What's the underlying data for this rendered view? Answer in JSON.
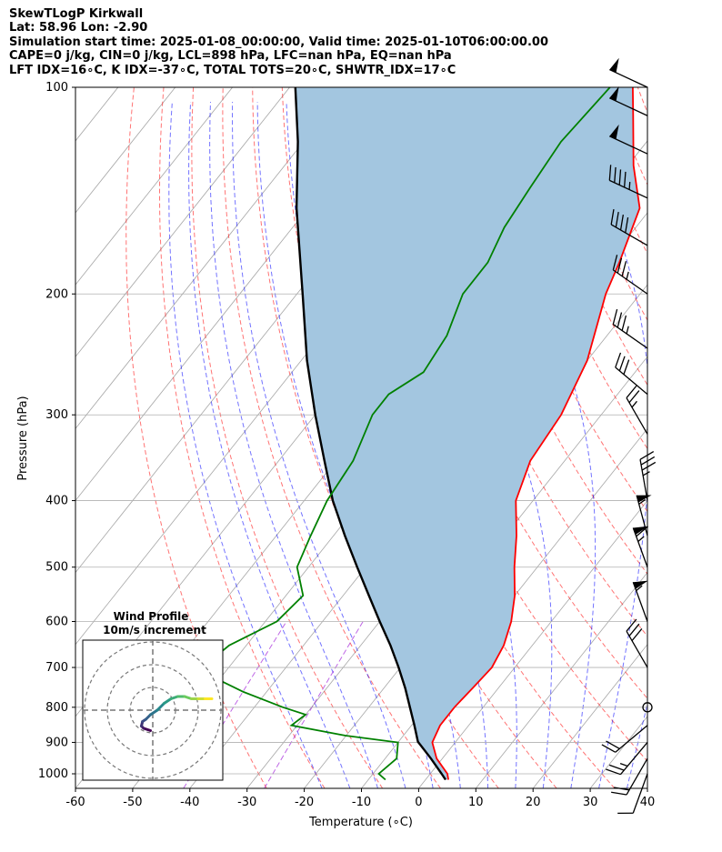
{
  "header": {
    "lines": [
      "SkewTLogP Kirkwall",
      "Lat: 58.96   Lon: -2.90",
      "Simulation start time: 2025-01-08_00:00:00, Valid time: 2025-01-10T06:00:00.00",
      "CAPE=0 j/kg, CIN=0 j/kg, LCL=898 hPa, LFC=nan hPa, EQ=nan hPa",
      "LFT IDX=16∘C, K IDX=-37∘C, TOTAL TOTS=20∘C, SHWTR_IDX=17∘C"
    ]
  },
  "colors": {
    "temperature": "#ff0000",
    "dewpoint": "#008000",
    "parcel": "#000000",
    "cape_fill": "#a3c6e0",
    "dry_adiabat": "#ff0000",
    "moist_adiabat": "#0000ff",
    "isotherm": "#808080",
    "mixing_ratio": "#9400d3"
  },
  "chart_data": {
    "type": "skewt-logp",
    "xlabel": "Temperature (∘C)",
    "ylabel": "Pressure (hPa)",
    "xlim": [
      -60,
      40
    ],
    "ylim_hpa": [
      1050,
      100
    ],
    "log_y": true,
    "grid": true,
    "x_ticks": [
      -60,
      -50,
      -40,
      -30,
      -20,
      -10,
      0,
      10,
      20,
      30,
      40
    ],
    "y_ticks": [
      100,
      200,
      300,
      400,
      500,
      600,
      700,
      800,
      900,
      1000
    ],
    "temperature": {
      "p": [
        1020,
        1000,
        950,
        900,
        850,
        800,
        750,
        700,
        650,
        600,
        550,
        500,
        450,
        400,
        350,
        300,
        250,
        200,
        180,
        150,
        130,
        110,
        100
      ],
      "t": [
        4,
        3,
        -1,
        -4,
        -5,
        -5,
        -4.5,
        -4,
        -5,
        -7,
        -10,
        -14,
        -18,
        -23,
        -26,
        -27,
        -30,
        -36,
        -38,
        -42,
        -49,
        -56,
        -60
      ]
    },
    "dewpoint": {
      "p": [
        1020,
        1000,
        950,
        900,
        880,
        850,
        820,
        800,
        760,
        720,
        680,
        650,
        600,
        550,
        500,
        450,
        400,
        350,
        300,
        280,
        260,
        230,
        200,
        180,
        160,
        140,
        120,
        100
      ],
      "td": [
        -7,
        -9,
        -8,
        -10,
        -20,
        -31,
        -30,
        -35,
        -44,
        -52,
        -54,
        -53,
        -48,
        -47,
        -52,
        -54,
        -56,
        -57,
        -60,
        -60,
        -57,
        -58,
        -61,
        -61,
        -63,
        -64,
        -65,
        -64
      ]
    },
    "parcel": {
      "p": [
        1020,
        1000,
        950,
        898,
        850,
        800,
        750,
        700,
        650,
        600,
        550,
        500,
        450,
        400,
        350,
        300,
        250,
        200,
        150,
        120,
        100
      ],
      "t": [
        3.5,
        2,
        -2,
        -6.6,
        -9.5,
        -12.8,
        -16.3,
        -20.3,
        -24.8,
        -30,
        -35.5,
        -41.5,
        -48,
        -55,
        -62,
        -70,
        -79,
        -89,
        -102,
        -111,
        -119
      ]
    },
    "wind_barbs": [
      {
        "p": 1000,
        "speed_kt": 10,
        "dir_deg": 200
      },
      {
        "p": 950,
        "speed_kt": 20,
        "dir_deg": 210
      },
      {
        "p": 900,
        "speed_kt": 25,
        "dir_deg": 220
      },
      {
        "p": 850,
        "speed_kt": 20,
        "dir_deg": 230
      },
      {
        "p": 800,
        "speed_kt": 0,
        "dir_deg": 0
      },
      {
        "p": 700,
        "speed_kt": 30,
        "dir_deg": 330
      },
      {
        "p": 600,
        "speed_kt": 55,
        "dir_deg": 340
      },
      {
        "p": 500,
        "speed_kt": 65,
        "dir_deg": 340
      },
      {
        "p": 450,
        "speed_kt": 55,
        "dir_deg": 345
      },
      {
        "p": 400,
        "speed_kt": 35,
        "dir_deg": 350
      },
      {
        "p": 320,
        "speed_kt": 25,
        "dir_deg": 330
      },
      {
        "p": 280,
        "speed_kt": 30,
        "dir_deg": 310
      },
      {
        "p": 240,
        "speed_kt": 35,
        "dir_deg": 305
      },
      {
        "p": 200,
        "speed_kt": 35,
        "dir_deg": 305
      },
      {
        "p": 170,
        "speed_kt": 40,
        "dir_deg": 300
      },
      {
        "p": 145,
        "speed_kt": 45,
        "dir_deg": 295
      },
      {
        "p": 125,
        "speed_kt": 50,
        "dir_deg": 295
      },
      {
        "p": 110,
        "speed_kt": 50,
        "dir_deg": 295
      },
      {
        "p": 100,
        "speed_kt": 50,
        "dir_deg": 295
      }
    ],
    "hodograph": {
      "title": "Wind Profile",
      "subtitle": "10m/s increment",
      "ring_speeds": [
        10,
        20,
        30
      ],
      "u": [
        -1,
        -4,
        -5,
        -4.5,
        -3,
        -1,
        2,
        5,
        8,
        11,
        14,
        17,
        20,
        23,
        26
      ],
      "v": [
        9,
        8,
        7,
        5,
        4,
        2,
        0,
        -3,
        -5,
        -6,
        -6,
        -5,
        -5,
        -5,
        -5
      ]
    }
  }
}
